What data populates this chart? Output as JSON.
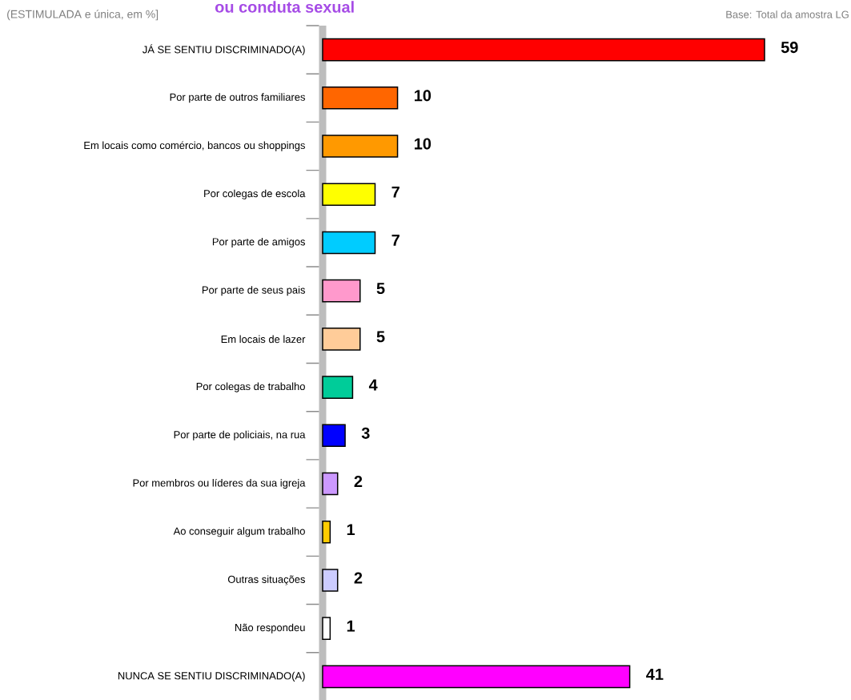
{
  "chart_data": {
    "type": "bar",
    "orientation": "horizontal",
    "title": "ou conduta sexual",
    "subtitle": "(ESTIMULADA e única, em %]",
    "categories": [
      "JÁ SE SENTIU DISCRIMINADO(A)",
      "Por parte de outros familiares",
      "Em locais como comércio, bancos ou shoppings",
      "Por colegas de escola",
      "Por parte de amigos",
      "Por parte de seus pais",
      "Em locais de lazer",
      "Por colegas de trabalho",
      "Por parte de policiais, na rua",
      "Por membros ou líderes da sua igreja",
      "Ao conseguir algum trabalho",
      "Outras situações",
      "Não respondeu",
      "NUNCA SE SENTIU DISCRIMINADO(A)"
    ],
    "values": [
      59,
      10,
      10,
      7,
      7,
      5,
      5,
      4,
      3,
      2,
      1,
      2,
      1,
      41
    ],
    "colors": [
      "#ff0000",
      "#ff6600",
      "#ff9900",
      "#ffff00",
      "#00ccff",
      "#ff99cc",
      "#ffcc99",
      "#00cc99",
      "#0000ff",
      "#cc99ff",
      "#ffcc00",
      "#ccccff",
      "#ffffff",
      "#ff00ff"
    ],
    "data_labels": true,
    "annotations": [
      "Base: Total da amostra LG"
    ]
  }
}
